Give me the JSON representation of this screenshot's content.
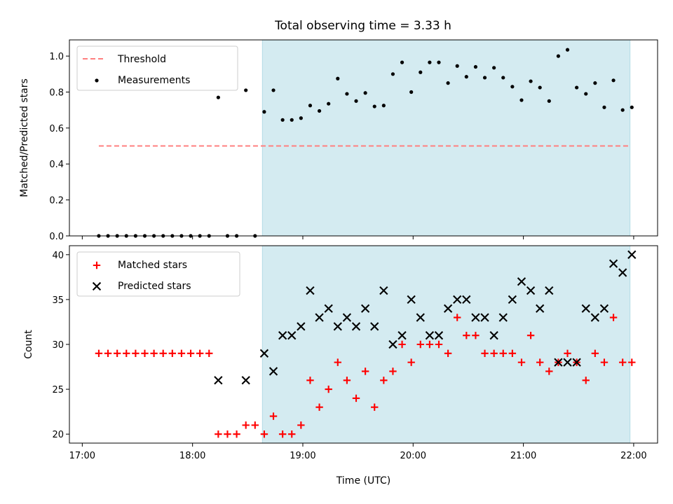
{
  "title": "Total observing time = 3.33 h",
  "chart_data": [
    {
      "type": "scatter",
      "ylabel": "Matched/Predicted stars",
      "xlabel": "",
      "ylim": [
        0,
        1.09
      ],
      "yticks": [
        0.0,
        0.2,
        0.4,
        0.6,
        0.8,
        1.0
      ],
      "ytick_labels": [
        "0.0",
        "0.2",
        "0.4",
        "0.6",
        "0.8",
        "1.0"
      ],
      "xlim": [
        "16:53",
        "22:13"
      ],
      "shaded_interval": [
        "18:38",
        "21:58"
      ],
      "shade_color": "#d4ebf1",
      "legend": {
        "placement": "top-left",
        "entries": [
          "Threshold",
          "Measurements"
        ]
      },
      "threshold": {
        "name": "Threshold",
        "y": 0.5,
        "x_start": "17:09",
        "x_end": "21:58",
        "color": "#ff7f7f",
        "style": "dashed"
      },
      "series": [
        {
          "name": "Measurements",
          "color": "#000000",
          "marker": "dot",
          "x": [
            "17:09",
            "17:14",
            "17:19",
            "17:24",
            "17:29",
            "17:34",
            "17:39",
            "17:44",
            "17:49",
            "17:54",
            "17:59",
            "18:04",
            "18:09",
            "18:14",
            "18:19",
            "18:24",
            "18:29",
            "18:34",
            "18:39",
            "18:44",
            "18:49",
            "18:54",
            "18:59",
            "19:04",
            "19:09",
            "19:14",
            "19:19",
            "19:24",
            "19:29",
            "19:34",
            "19:39",
            "19:44",
            "19:49",
            "19:54",
            "19:59",
            "20:04",
            "20:09",
            "20:14",
            "20:19",
            "20:24",
            "20:29",
            "20:34",
            "20:39",
            "20:44",
            "20:49",
            "20:54",
            "20:59",
            "21:04",
            "21:09",
            "21:14",
            "21:19",
            "21:24",
            "21:29",
            "21:34",
            "21:39",
            "21:44",
            "21:49",
            "21:54",
            "21:59"
          ],
          "y": [
            0,
            0,
            0,
            0,
            0,
            0,
            0,
            0,
            0,
            0,
            0,
            0,
            0,
            0.77,
            0,
            0,
            0.81,
            0,
            0.69,
            0.81,
            0.645,
            0.645,
            0.655,
            0.725,
            0.695,
            0.735,
            0.875,
            0.79,
            0.75,
            0.795,
            0.72,
            0.725,
            0.9,
            0.965,
            0.8,
            0.91,
            0.965,
            0.965,
            0.85,
            0.945,
            0.885,
            0.94,
            0.88,
            0.935,
            0.88,
            0.83,
            0.755,
            0.86,
            0.825,
            0.75,
            1.0,
            1.035,
            0.825,
            0.79,
            0.85,
            0.715,
            0.865,
            0.7,
            0.715
          ]
        }
      ]
    },
    {
      "type": "scatter",
      "xlabel": "Time (UTC)",
      "ylabel": "Count",
      "ylim": [
        19,
        41
      ],
      "yticks": [
        20,
        25,
        30,
        35,
        40
      ],
      "ytick_labels": [
        "20",
        "25",
        "30",
        "35",
        "40"
      ],
      "xlim": [
        "16:53",
        "22:13"
      ],
      "xticks": [
        "17:00",
        "18:00",
        "19:00",
        "20:00",
        "21:00",
        "22:00"
      ],
      "shaded_interval": [
        "18:38",
        "21:58"
      ],
      "shade_color": "#d4ebf1",
      "legend": {
        "placement": "top-left",
        "entries": [
          "Matched stars",
          "Predicted stars"
        ]
      },
      "series": [
        {
          "name": "Matched stars",
          "color": "#ff0000",
          "marker": "plus",
          "x": [
            "17:09",
            "17:14",
            "17:19",
            "17:24",
            "17:29",
            "17:34",
            "17:39",
            "17:44",
            "17:49",
            "17:54",
            "17:59",
            "18:04",
            "18:09",
            "18:14",
            "18:19",
            "18:24",
            "18:29",
            "18:34",
            "18:39",
            "18:44",
            "18:49",
            "18:54",
            "18:59",
            "19:04",
            "19:09",
            "19:14",
            "19:19",
            "19:24",
            "19:29",
            "19:34",
            "19:39",
            "19:44",
            "19:49",
            "19:54",
            "19:59",
            "20:04",
            "20:09",
            "20:14",
            "20:19",
            "20:24",
            "20:29",
            "20:34",
            "20:39",
            "20:44",
            "20:49",
            "20:54",
            "20:59",
            "21:04",
            "21:09",
            "21:14",
            "21:19",
            "21:24",
            "21:29",
            "21:34",
            "21:39",
            "21:44",
            "21:49",
            "21:54",
            "21:59"
          ],
          "y": [
            29,
            29,
            29,
            29,
            29,
            29,
            29,
            29,
            29,
            29,
            29,
            29,
            29,
            20,
            20,
            20,
            21,
            21,
            20,
            22,
            20,
            20,
            21,
            26,
            23,
            25,
            28,
            26,
            24,
            27,
            23,
            26,
            27,
            30,
            28,
            30,
            30,
            30,
            29,
            33,
            31,
            31,
            29,
            29,
            29,
            29,
            28,
            31,
            28,
            27,
            28,
            29,
            28,
            26,
            29,
            28,
            33,
            28,
            28
          ]
        },
        {
          "name": "Predicted stars",
          "color": "#000000",
          "marker": "x",
          "x": [
            "18:14",
            "18:29",
            "18:39",
            "18:44",
            "18:49",
            "18:54",
            "18:59",
            "19:04",
            "19:09",
            "19:14",
            "19:19",
            "19:24",
            "19:29",
            "19:34",
            "19:39",
            "19:44",
            "19:49",
            "19:54",
            "19:59",
            "20:04",
            "20:09",
            "20:14",
            "20:19",
            "20:24",
            "20:29",
            "20:34",
            "20:39",
            "20:44",
            "20:49",
            "20:54",
            "20:59",
            "21:04",
            "21:09",
            "21:14",
            "21:19",
            "21:24",
            "21:29",
            "21:34",
            "21:39",
            "21:44",
            "21:49",
            "21:54",
            "21:59"
          ],
          "y": [
            26,
            26,
            29,
            27,
            31,
            31,
            32,
            36,
            33,
            34,
            32,
            33,
            32,
            34,
            32,
            36,
            30,
            31,
            35,
            33,
            31,
            31,
            34,
            35,
            35,
            33,
            33,
            31,
            33,
            35,
            37,
            36,
            34,
            36,
            28,
            28,
            28,
            34,
            33,
            34,
            39,
            38,
            40
          ]
        }
      ]
    }
  ]
}
